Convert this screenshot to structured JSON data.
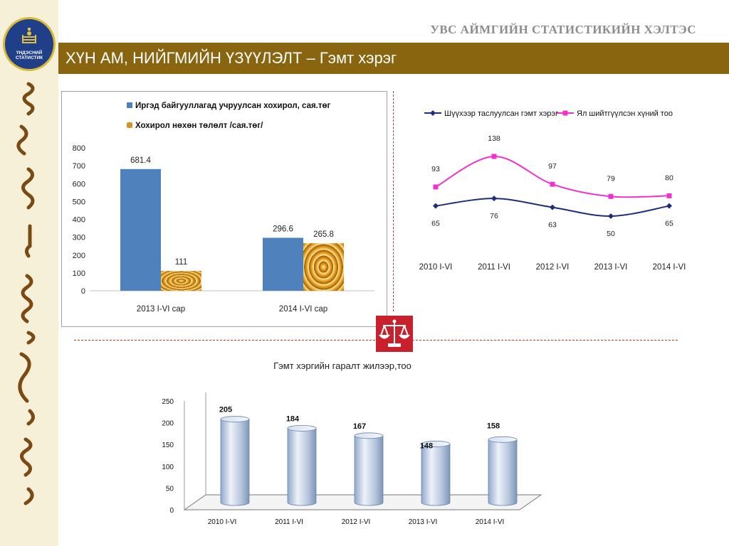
{
  "header": {
    "org_name": "УВС АЙМГИЙН СТАТИСТИКИЙН ХЭЛТЭС",
    "title": "ХҮН АМ, НИЙГМИЙН ҮЗҮҮЛЭЛТ – Гэмт хэрэг",
    "logo_text_line1": "ҮНДЭСНИЙ",
    "logo_text_line2": "СТАТИСТИК"
  },
  "colors": {
    "banner": "#8a6510",
    "bar_blue": "#4f81bd",
    "bar_gold": "#e69a1c",
    "line_navy": "#1f2e7a",
    "line_pink": "#f030d0",
    "scales_red": "#c8202c"
  },
  "icons": {
    "logo": "statistics-emblem-icon",
    "divider": "scales-of-justice-icon"
  },
  "chart_data": [
    {
      "type": "bar",
      "categories": [
        "2013  I-VI сар",
        "2014  I-VI сар"
      ],
      "series": [
        {
          "name": "Иргэд байгууллагад учруулсан  хохирол, сая.төг",
          "values": [
            681.4,
            296.6
          ]
        },
        {
          "name": "Хохирол нөхөн төлөлт /сая.төг/",
          "values": [
            111,
            265.8
          ]
        }
      ],
      "value_labels": [
        "681.4",
        "296.6",
        "111",
        "265.8"
      ],
      "ylim": [
        0,
        800
      ],
      "yticks": [
        "0",
        "100",
        "200",
        "300",
        "400",
        "500",
        "600",
        "700",
        "800"
      ],
      "legend": "top",
      "grid": false
    },
    {
      "type": "line",
      "categories": [
        "2010 I-VI",
        "2011 I-VI",
        "2012 I-VI",
        "2013 I-VI",
        "2014 I-VI"
      ],
      "series": [
        {
          "name": "Шүүхээр таслуулсан гэмт хэрэг",
          "values": [
            65,
            76,
            63,
            50,
            65
          ],
          "labels": [
            "65",
            "76",
            "63",
            "50",
            "65"
          ]
        },
        {
          "name": "Ял шийтгүүлсэн хүний тоо",
          "values": [
            93,
            138,
            97,
            79,
            80
          ],
          "labels": [
            "93",
            "138",
            "97",
            "79",
            "80"
          ]
        }
      ],
      "legend": "top",
      "grid": false
    },
    {
      "type": "bar",
      "title": "Гэмт хэргийн гаралт жилээр,тоо",
      "categories": [
        "2010 I-VI",
        "2011 I-VI",
        "2012 I-VI",
        "2013 I-VI",
        "2014 I-VI"
      ],
      "values": [
        205,
        184,
        167,
        148,
        158
      ],
      "value_labels": [
        "205",
        "184",
        "167",
        "148",
        "158"
      ],
      "ylim": [
        0,
        250
      ],
      "yticks": [
        "0",
        "50",
        "100",
        "150",
        "200",
        "250"
      ],
      "grid": false
    }
  ]
}
